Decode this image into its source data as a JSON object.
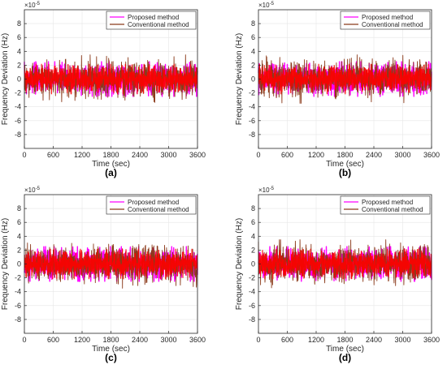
{
  "figure": {
    "panel_labels": [
      "(a)",
      "(b)",
      "(c)",
      "(d)"
    ]
  },
  "colors": {
    "proposed": "#ff00ff",
    "conventional": "#8b3a1a",
    "overlay": "#ff0000",
    "axis": "#262626",
    "grid": "#e6e6e6"
  },
  "chart_data": [
    {
      "type": "line",
      "panel": "(a)",
      "xlabel": "Time (sec)",
      "ylabel": "Frequency Deviation (Hz)",
      "y_multiplier": "×10",
      "y_exponent": "-5",
      "xlim": [
        0,
        3600
      ],
      "ylim": [
        -10,
        10
      ],
      "xticks": [
        0,
        600,
        1200,
        1800,
        2400,
        3000,
        3600
      ],
      "yticks": [
        -8,
        -6,
        -4,
        -2,
        0,
        2,
        4,
        6,
        8
      ],
      "grid": true,
      "legend_position": "top-right",
      "series": [
        {
          "name": "Proposed method",
          "color": "#ff00ff",
          "amplitude_range": [
            -2.5,
            2.5
          ]
        },
        {
          "name": "Conventional method",
          "color": "#8b3a1a",
          "amplitude_range": [
            -3.5,
            3.5
          ]
        }
      ]
    },
    {
      "type": "line",
      "panel": "(b)",
      "xlabel": "Time (sec)",
      "ylabel": "Frequency Deviation (Hz)",
      "y_multiplier": "×10",
      "y_exponent": "-5",
      "xlim": [
        0,
        3600
      ],
      "ylim": [
        -10,
        10
      ],
      "xticks": [
        0,
        600,
        1200,
        1800,
        2400,
        3000,
        3600
      ],
      "yticks": [
        -8,
        -6,
        -4,
        -2,
        0,
        2,
        4,
        6,
        8
      ],
      "grid": true,
      "legend_position": "top-right",
      "series": [
        {
          "name": "Proposed method",
          "color": "#ff00ff",
          "amplitude_range": [
            -2.5,
            2.5
          ]
        },
        {
          "name": "Conventional method",
          "color": "#8b3a1a",
          "amplitude_range": [
            -3.5,
            3.5
          ]
        }
      ]
    },
    {
      "type": "line",
      "panel": "(c)",
      "xlabel": "Time (sec)",
      "ylabel": "Frequency Deviation (Hz)",
      "y_multiplier": "×10",
      "y_exponent": "-5",
      "xlim": [
        0,
        3600
      ],
      "ylim": [
        -10,
        10
      ],
      "xticks": [
        0,
        600,
        1200,
        1800,
        2400,
        3000,
        3600
      ],
      "yticks": [
        -8,
        -6,
        -4,
        -2,
        0,
        2,
        4,
        6,
        8
      ],
      "grid": true,
      "legend_position": "top-right",
      "series": [
        {
          "name": "Proposed method",
          "color": "#ff00ff",
          "amplitude_range": [
            -2.5,
            2.5
          ]
        },
        {
          "name": "Conventional method",
          "color": "#8b3a1a",
          "amplitude_range": [
            -3.5,
            3.5
          ]
        }
      ]
    },
    {
      "type": "line",
      "panel": "(d)",
      "xlabel": "Time (sec)",
      "ylabel": "Frequency Deviation (Hz)",
      "y_multiplier": "×10",
      "y_exponent": "-5",
      "xlim": [
        0,
        3600
      ],
      "ylim": [
        -10,
        10
      ],
      "xticks": [
        0,
        600,
        1200,
        1800,
        2400,
        3000,
        3600
      ],
      "yticks": [
        -8,
        -6,
        -4,
        -2,
        0,
        2,
        4,
        6,
        8
      ],
      "grid": true,
      "legend_position": "top-right",
      "series": [
        {
          "name": "Proposed method",
          "color": "#ff00ff",
          "amplitude_range": [
            -2.5,
            2.5
          ]
        },
        {
          "name": "Conventional method",
          "color": "#8b3a1a",
          "amplitude_range": [
            -3.5,
            3.5
          ]
        }
      ]
    }
  ]
}
